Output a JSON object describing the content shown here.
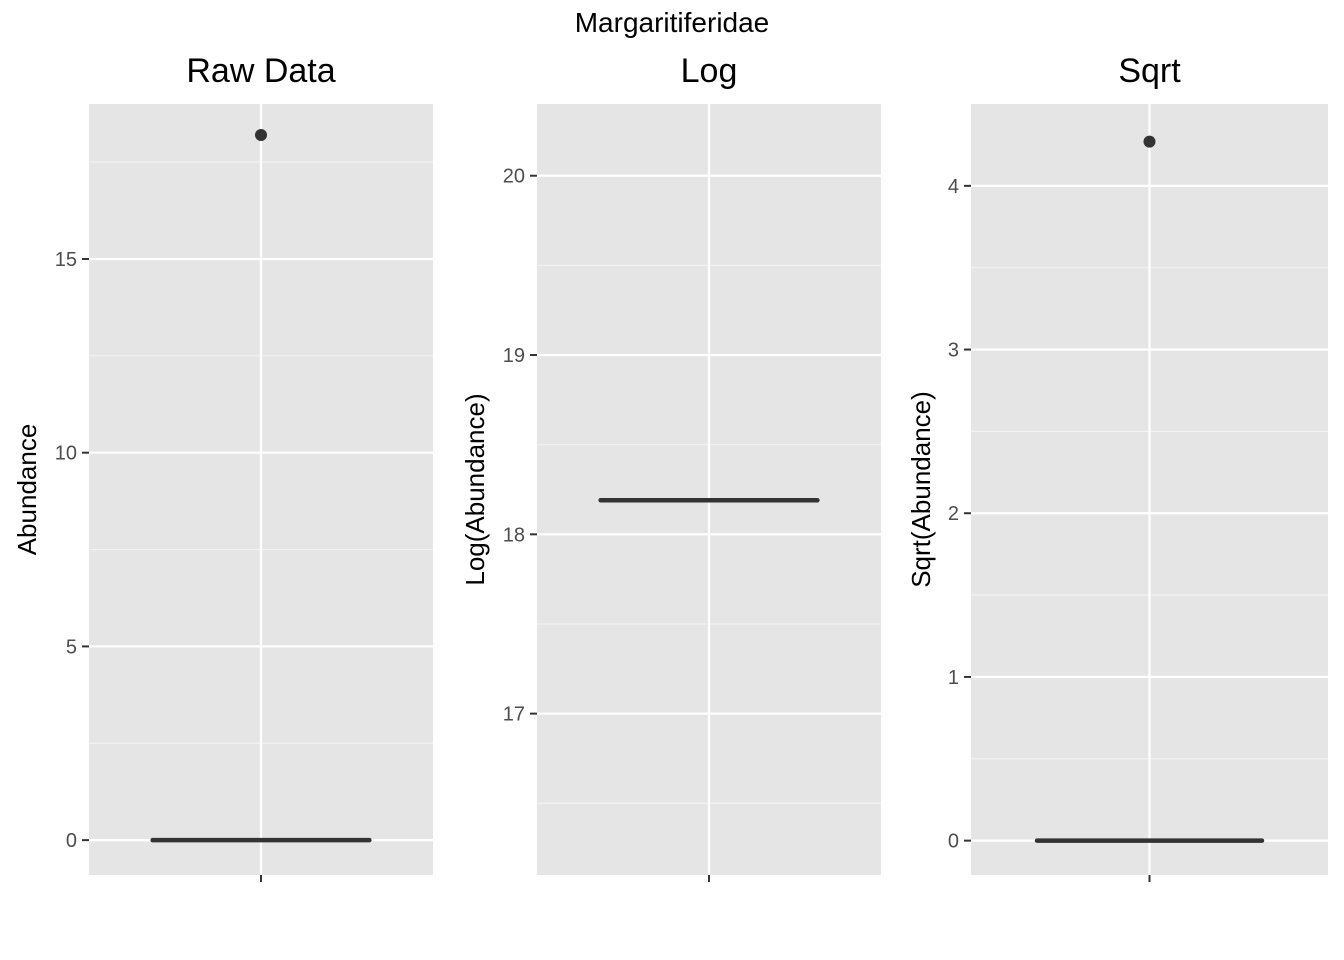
{
  "figure_title": "Margaritiferidae",
  "colors": {
    "panel_background": "#e5e5e5",
    "grid_major": "#ffffff",
    "grid_minor": "#f2f2f2",
    "median_line": "#333333",
    "outlier_point": "#333333",
    "tick_text": "#4d4d4d",
    "title_text": "#000000"
  },
  "chart_data": [
    {
      "type": "box",
      "title": "Raw Data",
      "xlabel": "",
      "ylabel": "Abundance",
      "ylim": [
        -0.9,
        19.0
      ],
      "y_ticks": [
        0,
        5,
        10,
        15
      ],
      "y_tick_labels": [
        "0",
        "5",
        "10",
        "15"
      ],
      "grid": true,
      "box": {
        "min": 0,
        "q1": 0,
        "median": 0,
        "q3": 0,
        "max": 0
      },
      "outliers": [
        18.2
      ]
    },
    {
      "type": "box",
      "title": "Log",
      "xlabel": "",
      "ylabel": "Log(Abundance)",
      "ylim": [
        16.1,
        20.4
      ],
      "y_ticks": [
        17,
        18,
        19,
        20
      ],
      "y_tick_labels": [
        "17",
        "18",
        "19",
        "20"
      ],
      "grid": true,
      "box": {
        "min": 18.19,
        "q1": 18.19,
        "median": 18.19,
        "q3": 18.19,
        "max": 18.19
      },
      "outliers": []
    },
    {
      "type": "box",
      "title": "Sqrt",
      "xlabel": "",
      "ylabel": "Sqrt(Abundance)",
      "ylim": [
        -0.21,
        4.5
      ],
      "y_ticks": [
        0,
        1,
        2,
        3,
        4
      ],
      "y_tick_labels": [
        "0",
        "1",
        "2",
        "3",
        "4"
      ],
      "grid": true,
      "box": {
        "min": 0,
        "q1": 0,
        "median": 0,
        "q3": 0,
        "max": 0
      },
      "outliers": [
        4.27
      ]
    }
  ]
}
